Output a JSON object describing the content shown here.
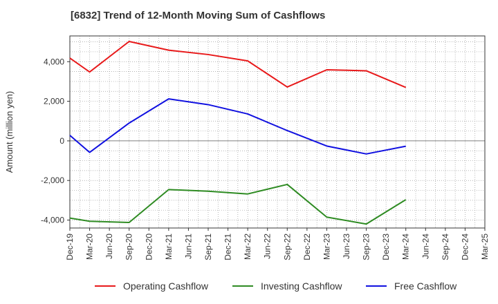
{
  "chart_data": {
    "type": "line",
    "title": "[6832]  Trend of 12-Month Moving Sum of Cashflows",
    "ylabel": "Amount (million yen)",
    "xlabel": "",
    "ylim": [
      -4400,
      5300
    ],
    "yticks": [
      -4000,
      -2000,
      0,
      2000,
      4000
    ],
    "ytick_labels": [
      "-4,000",
      "-2,000",
      "0",
      "2,000",
      "4,000"
    ],
    "categories": [
      "Dec-19",
      "Mar-20",
      "Jun-20",
      "Sep-20",
      "Dec-20",
      "Mar-21",
      "Jun-21",
      "Sep-21",
      "Dec-21",
      "Mar-22",
      "Jun-22",
      "Sep-22",
      "Dec-22",
      "Mar-23",
      "Jun-23",
      "Sep-23",
      "Dec-23",
      "Mar-24",
      "Jun-24",
      "Sep-24",
      "Dec-24",
      "Mar-25"
    ],
    "grid": true,
    "legend_position": "bottom",
    "series": [
      {
        "name": "Operating Cashflow",
        "color": "#e8191a",
        "values": [
          4180,
          3480,
          null,
          5020,
          null,
          4580,
          null,
          4360,
          null,
          4040,
          null,
          2720,
          null,
          3590,
          null,
          3540,
          null,
          2700,
          null,
          null,
          null,
          null
        ]
      },
      {
        "name": "Investing Cashflow",
        "color": "#2e8b22",
        "values": [
          -3900,
          -4060,
          null,
          -4120,
          null,
          -2460,
          null,
          -2540,
          null,
          -2680,
          null,
          -2200,
          null,
          -3850,
          null,
          -4200,
          null,
          -2970,
          null,
          null,
          null,
          null
        ]
      },
      {
        "name": "Free Cashflow",
        "color": "#1010e0",
        "values": [
          280,
          -580,
          null,
          900,
          null,
          2120,
          null,
          1830,
          null,
          1360,
          null,
          520,
          null,
          -260,
          null,
          -660,
          null,
          -270,
          null,
          null,
          null,
          null
        ]
      }
    ]
  }
}
